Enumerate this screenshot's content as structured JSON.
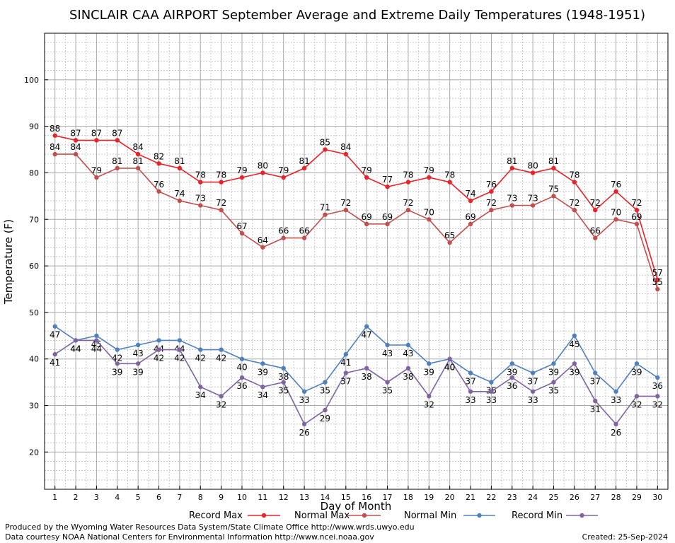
{
  "chart_data": {
    "type": "line",
    "title": "SINCLAIR CAA AIRPORT September Average and Extreme Daily Temperatures (1948-1951)",
    "xlabel": "Day of Month",
    "ylabel": "Temperature (F)",
    "x": [
      1,
      2,
      3,
      4,
      5,
      6,
      7,
      8,
      9,
      10,
      11,
      12,
      13,
      14,
      15,
      16,
      17,
      18,
      19,
      20,
      21,
      22,
      23,
      24,
      25,
      26,
      27,
      28,
      29,
      30
    ],
    "xlim": [
      0.5,
      30.5
    ],
    "ylim": [
      12,
      110
    ],
    "yticks": [
      20,
      30,
      40,
      50,
      60,
      70,
      80,
      90,
      100
    ],
    "grid": true,
    "legend_position": "bottom",
    "series": [
      {
        "name": "Record Max",
        "color": "#e8232a",
        "values": [
          88,
          87,
          87,
          87,
          84,
          82,
          81,
          78,
          78,
          79,
          80,
          79,
          81,
          85,
          84,
          79,
          77,
          78,
          79,
          78,
          74,
          76,
          81,
          80,
          81,
          78,
          72,
          76,
          72,
          57
        ],
        "label_side": "above"
      },
      {
        "name": "Normal Max",
        "color": "#c0504d",
        "values": [
          84,
          84,
          79,
          81,
          81,
          76,
          74,
          73,
          72,
          67,
          64,
          66,
          66,
          71,
          72,
          69,
          69,
          72,
          70,
          65,
          69,
          72,
          73,
          73,
          75,
          72,
          66,
          70,
          69,
          55
        ],
        "label_side": "above"
      },
      {
        "name": "Normal Min",
        "color": "#4f81bd",
        "values": [
          47,
          44,
          45,
          42,
          43,
          44,
          44,
          42,
          42,
          40,
          39,
          38,
          33,
          35,
          41,
          47,
          43,
          43,
          39,
          40,
          37,
          35,
          39,
          37,
          39,
          45,
          37,
          33,
          39,
          36
        ],
        "label_side": "below"
      },
      {
        "name": "Record Min",
        "color": "#8064a2",
        "values": [
          41,
          44,
          44,
          39,
          39,
          42,
          42,
          34,
          32,
          36,
          34,
          35,
          26,
          29,
          37,
          38,
          35,
          38,
          32,
          40,
          33,
          33,
          36,
          33,
          35,
          39,
          31,
          26,
          32,
          32
        ],
        "label_side": "below"
      }
    ]
  },
  "footer": {
    "credit_line1": "Produced by the Wyoming Water Resources Data System/State Climate Office http://www.wrds.uwyo.edu",
    "credit_line2": "Data courtesy NOAA National Centers for Environmental Information http://www.ncei.noaa.gov",
    "created": "Created:  25-Sep-2024"
  }
}
